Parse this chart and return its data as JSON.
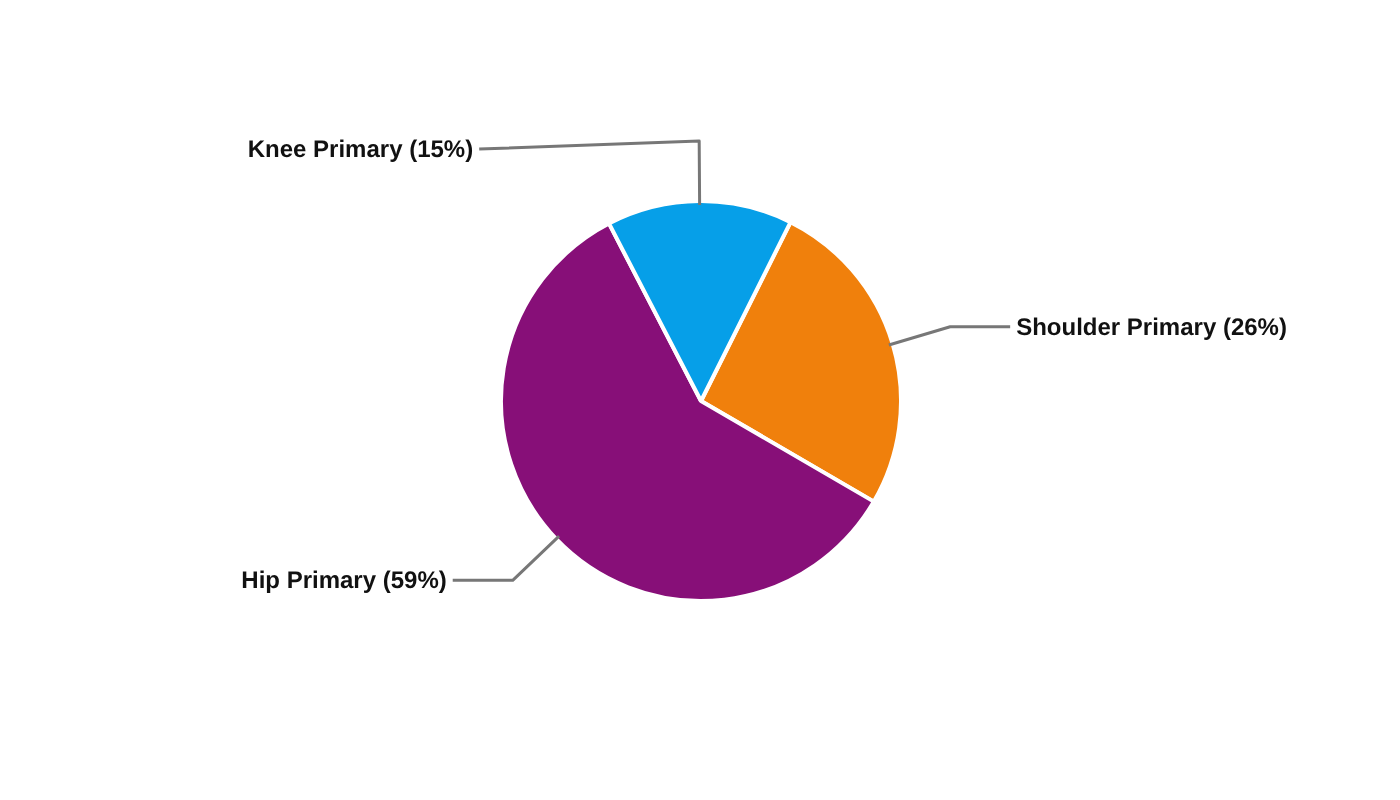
{
  "chart_data": {
    "type": "pie",
    "categories": [
      "Shoulder Primary",
      "Hip Primary",
      "Knee Primary"
    ],
    "values": [
      26,
      59,
      15
    ],
    "colors": [
      "#f0800c",
      "#870f78",
      "#069fe8"
    ],
    "value_labels": [
      "(26%)",
      "(59%)",
      "(15%)"
    ]
  }
}
